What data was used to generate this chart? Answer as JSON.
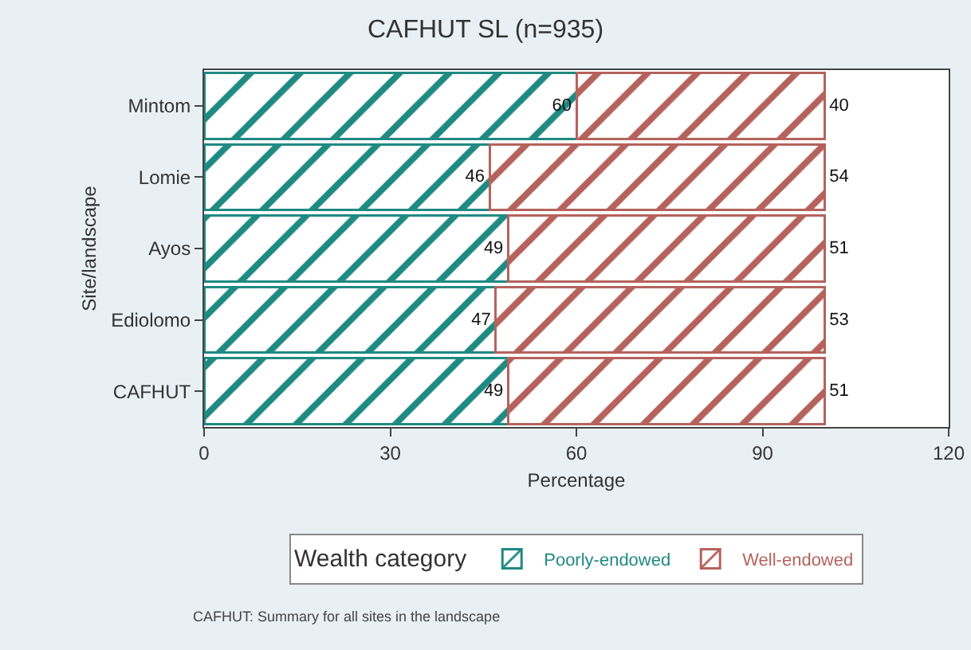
{
  "chart_data": {
    "type": "bar",
    "orientation": "horizontal",
    "stacked": true,
    "title": "CAFHUT SL (n=935)",
    "xlabel": "Percentage",
    "ylabel": "Site/landscape",
    "legend_title": "Wealth category",
    "categories": [
      "Mintom",
      "Lomie",
      "Ayos",
      "Ediolomo",
      "CAFHUT"
    ],
    "series": [
      {
        "name": "Poorly-endowed",
        "color": "#1f8a82",
        "values": [
          60,
          46,
          49,
          47,
          49
        ]
      },
      {
        "name": "Well-endowed",
        "color": "#b5625c",
        "values": [
          40,
          54,
          51,
          53,
          51
        ]
      }
    ],
    "xlim": [
      0,
      120
    ],
    "xticks": [
      0,
      30,
      60,
      90,
      120
    ],
    "data_labels": true,
    "legend": "bottom",
    "grid": false,
    "annotations": [
      "CAFHUT: Summary for all sites in the landscape"
    ]
  }
}
